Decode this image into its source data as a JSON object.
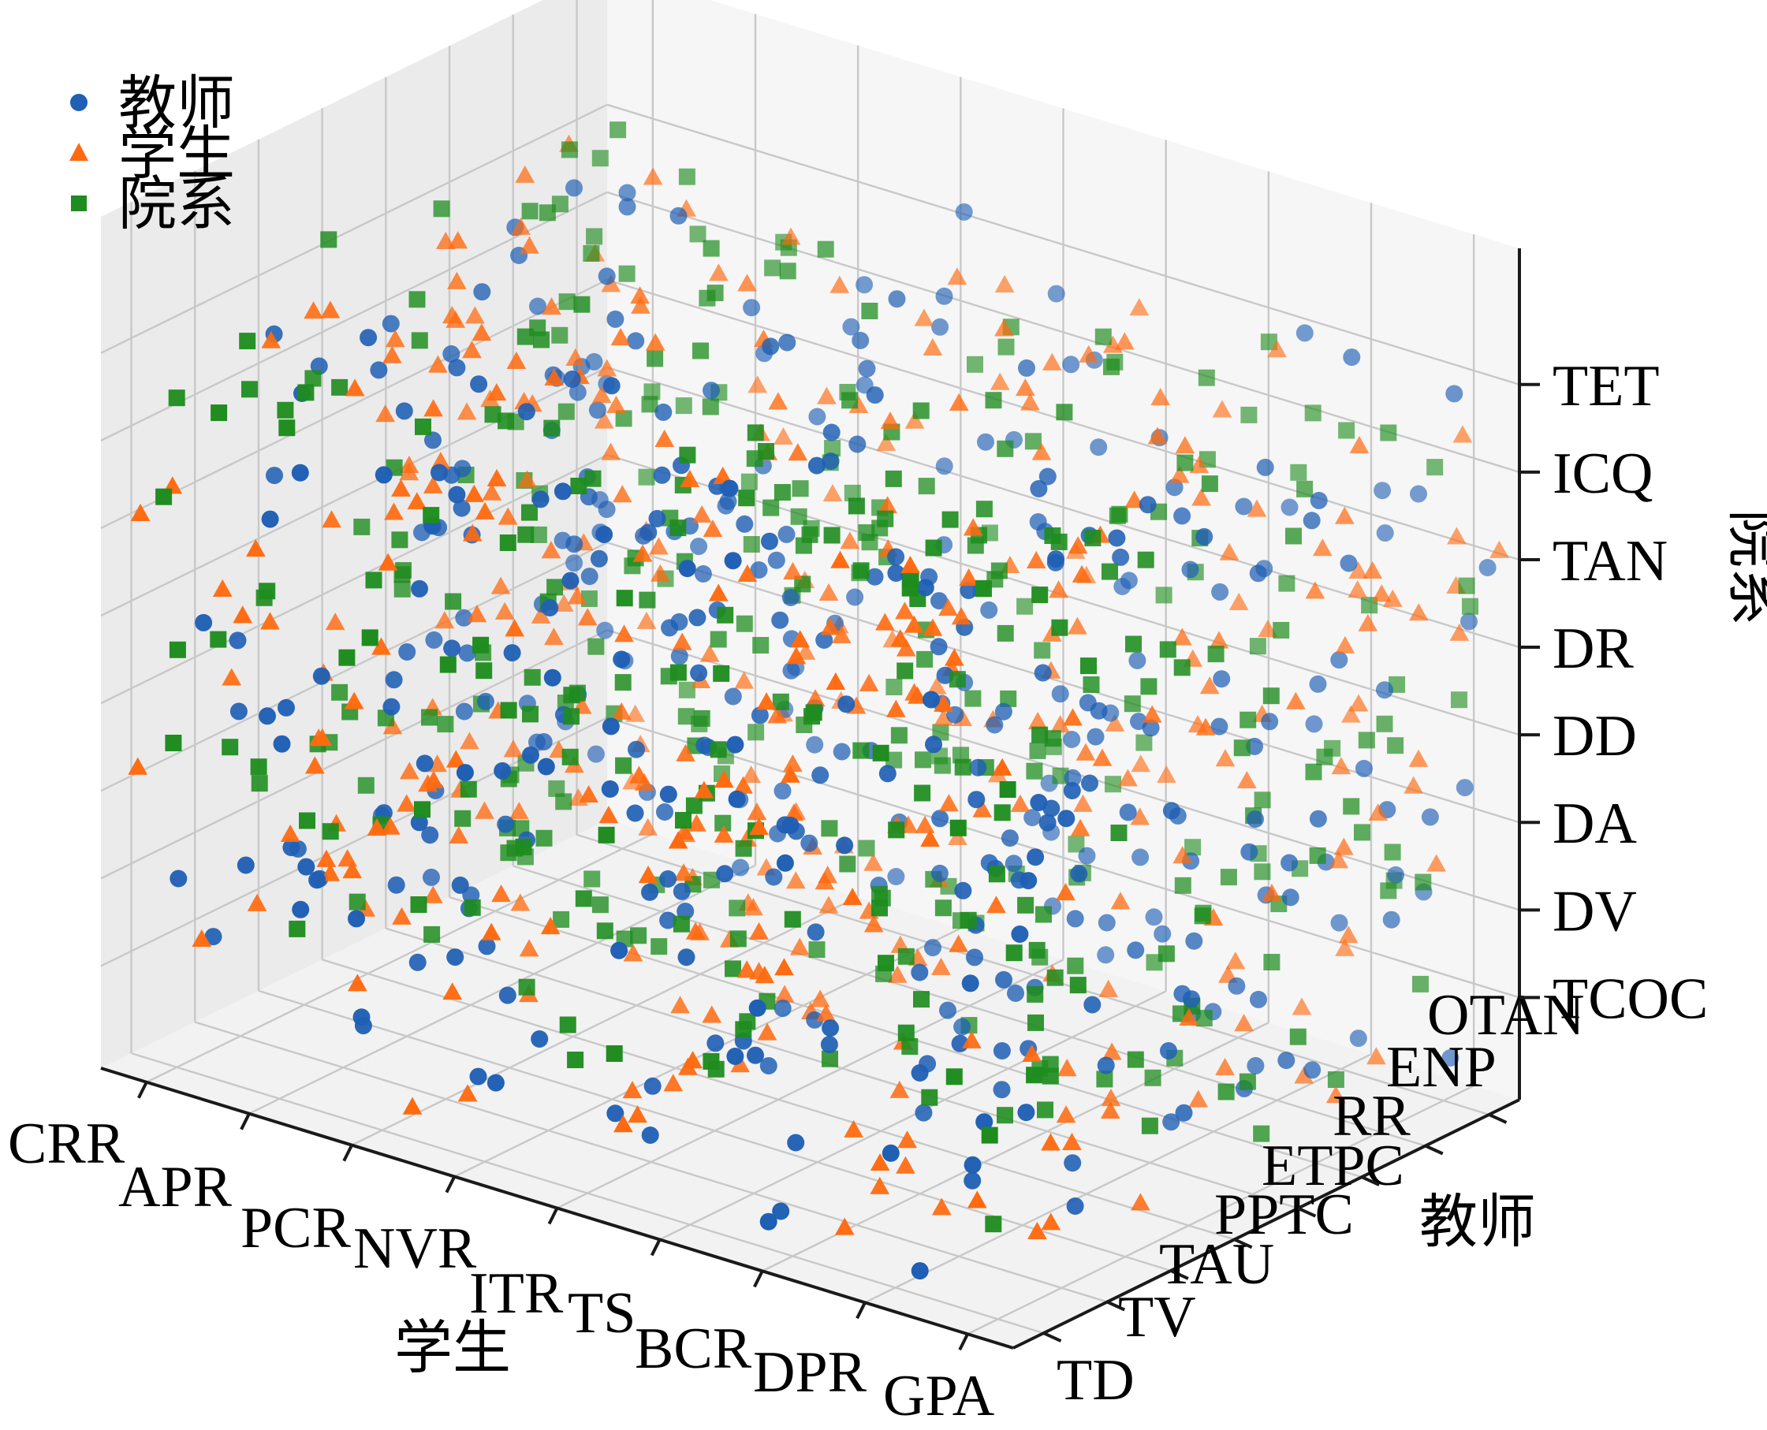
{
  "chart_data": {
    "type": "scatter",
    "title": "",
    "axes": {
      "x": {
        "label": "学生",
        "ticks": [
          "CRR",
          "APR",
          "PCR",
          "NVR",
          "ITR",
          "TS",
          "BCR",
          "DPR",
          "GPA"
        ]
      },
      "y": {
        "label": "教师",
        "ticks": [
          "TD",
          "TV",
          "TAU",
          "PPTC",
          "ETPC",
          "RR",
          "ENP",
          "OTAN"
        ]
      },
      "z": {
        "label": "院系",
        "ticks": [
          "TCOC",
          "DV",
          "DA",
          "DD",
          "DR",
          "TAN",
          "ICQ",
          "TET"
        ]
      }
    },
    "grid": true,
    "legend": {
      "position": "top-left"
    },
    "series": [
      {
        "name": "教师",
        "marker": "circle",
        "color": "#1f5fb4",
        "count": 420
      },
      {
        "name": "学生",
        "marker": "triangle",
        "color": "#ff6a10",
        "count": 420
      },
      {
        "name": "院系",
        "marker": "square",
        "color": "#1e8c1e",
        "count": 420
      }
    ]
  }
}
